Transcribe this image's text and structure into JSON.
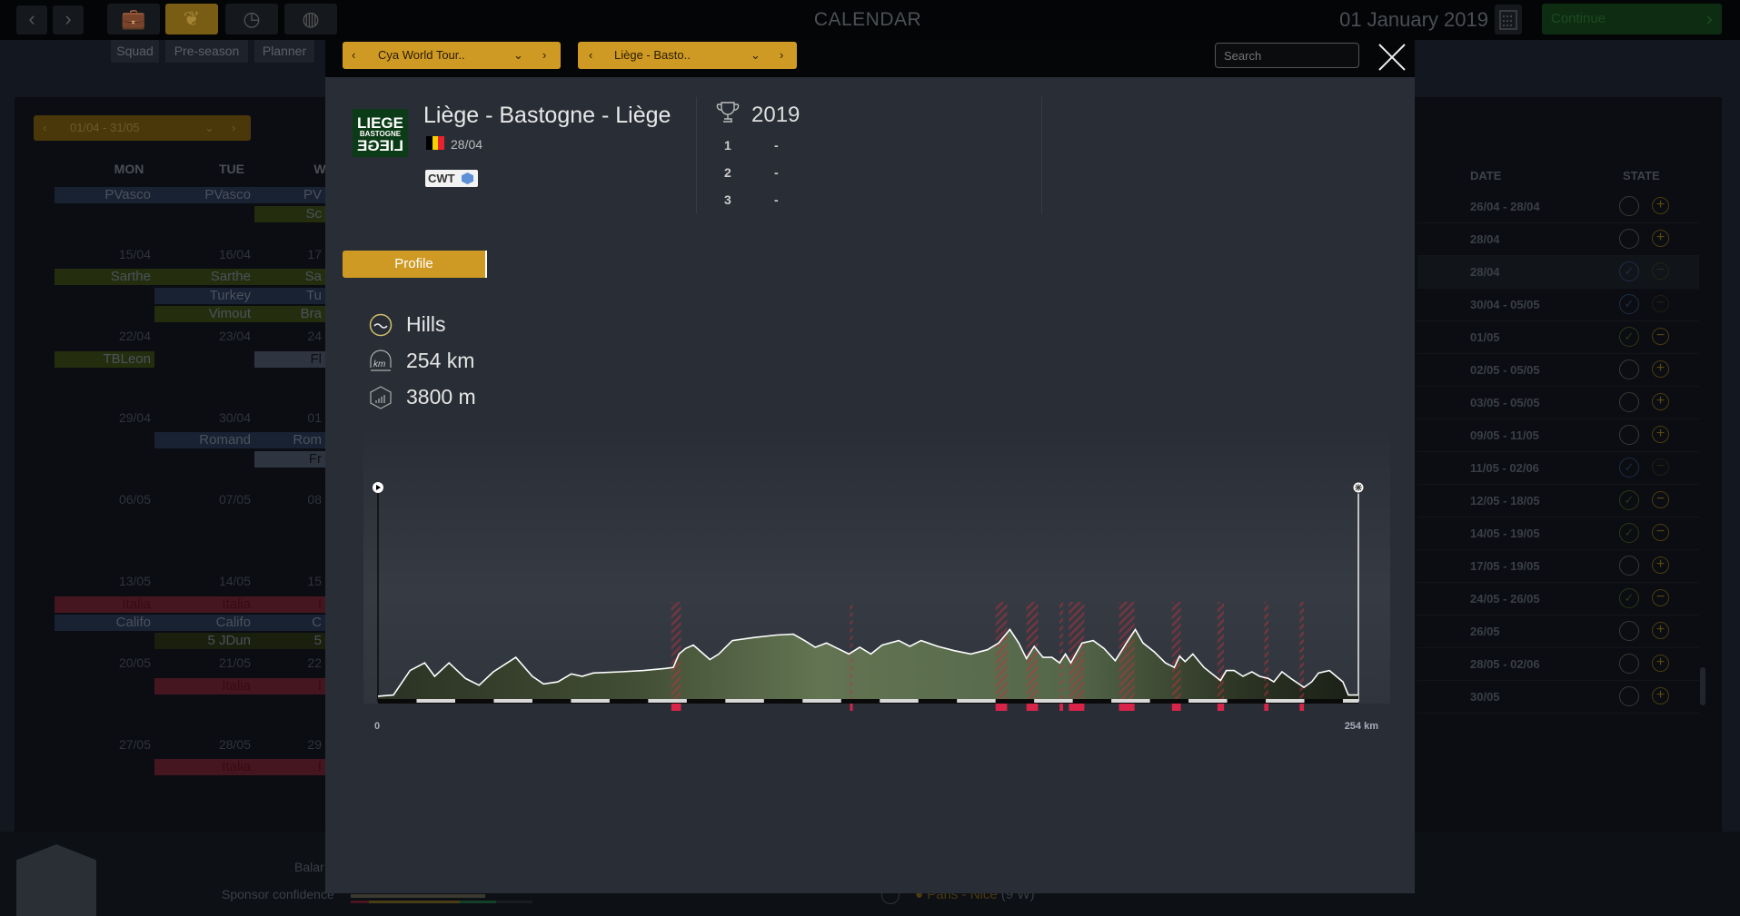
{
  "topbar": {
    "title": "CALENDAR",
    "date": "01 January 2019",
    "continue_label": "Continue",
    "tools": [
      {
        "icon": "briefcase-icon"
      },
      {
        "icon": "team-icon",
        "active": true
      },
      {
        "icon": "stopwatch-icon"
      },
      {
        "icon": "globe-icon"
      }
    ],
    "subtabs": [
      "Squad",
      "Pre-season",
      "Planner"
    ]
  },
  "calendar": {
    "range": "01/04 - 31/05",
    "days": [
      "MON",
      "TUE",
      "W"
    ],
    "dates": [
      [
        "15/04",
        "16/04",
        "17"
      ],
      [
        "22/04",
        "23/04",
        "24"
      ],
      [
        "29/04",
        "30/04",
        "01"
      ],
      [
        "06/05",
        "07/05",
        "08"
      ],
      [
        "13/05",
        "14/05",
        "15"
      ],
      [
        "20/05",
        "21/05",
        "22"
      ],
      [
        "27/05",
        "28/05",
        "29"
      ]
    ],
    "events": [
      {
        "text": [
          "PVasco",
          "PVasco",
          "PV"
        ],
        "color": "blue",
        "cols": [
          0,
          1,
          2
        ],
        "row": 0
      },
      {
        "text": [
          "",
          "",
          "Sc"
        ],
        "color": "olive",
        "cols": [
          2
        ],
        "row": 1
      },
      {
        "text": [
          "Sarthe",
          "Sarthe",
          "Sa"
        ],
        "color": "olive",
        "cols": [
          0,
          1,
          2
        ],
        "row": 2
      },
      {
        "text": [
          "",
          "Turkey",
          "Tu"
        ],
        "color": "blue",
        "cols": [
          1,
          2
        ],
        "row": 3
      },
      {
        "text": [
          "",
          "Vimout",
          "Bra"
        ],
        "color": "olive",
        "cols": [
          1,
          2
        ],
        "row": 4
      },
      {
        "text": [
          "TBLeon",
          "",
          ""
        ],
        "color": "olive",
        "cols": [
          0
        ],
        "row": 5
      },
      {
        "text": [
          "",
          "",
          "Fl"
        ],
        "color": "gray",
        "cols": [
          2
        ],
        "row": 5
      },
      {
        "text": [
          "",
          "Romand",
          "Rom"
        ],
        "color": "blue",
        "cols": [
          1,
          2
        ],
        "row": 6
      },
      {
        "text": [
          "",
          "",
          "Fr"
        ],
        "color": "gray",
        "cols": [
          2
        ],
        "row": 7
      },
      {
        "text": [
          "Italia",
          "Italia",
          "I"
        ],
        "color": "red",
        "cols": [
          0,
          1,
          2
        ],
        "row": 8
      },
      {
        "text": [
          "Califo",
          "Califo",
          "C"
        ],
        "color": "blue",
        "cols": [
          0,
          1,
          2
        ],
        "row": 9
      },
      {
        "text": [
          "",
          "5 JDun",
          "5"
        ],
        "color": "dark",
        "cols": [
          1,
          2
        ],
        "row": 10
      },
      {
        "text": [
          "",
          "Italia",
          "I"
        ],
        "color": "red",
        "cols": [
          1,
          2
        ],
        "row": 11
      },
      {
        "text": [
          "",
          "Italia",
          "I"
        ],
        "color": "red",
        "cols": [
          1,
          2
        ],
        "row": 12
      }
    ]
  },
  "race_table": {
    "headers": {
      "date": "DATE",
      "state": "STATE"
    },
    "rows": [
      {
        "date": "26/04 - 28/04",
        "state": "empty",
        "action": "+"
      },
      {
        "date": "28/04",
        "state": "empty",
        "action": "+"
      },
      {
        "date": "28/04",
        "state": "check-blue",
        "action": "−",
        "selected": true
      },
      {
        "date": "30/04 - 05/05",
        "state": "check-blue",
        "action": "−"
      },
      {
        "date": "01/05",
        "state": "check-green",
        "action": "−"
      },
      {
        "date": "02/05 - 05/05",
        "state": "empty",
        "action": "+"
      },
      {
        "date": "03/05 - 05/05",
        "state": "empty",
        "action": "+"
      },
      {
        "date": "09/05 - 11/05",
        "state": "empty",
        "action": "+"
      },
      {
        "date": "11/05 - 02/06",
        "state": "check-blue",
        "action": "−"
      },
      {
        "date": "12/05 - 18/05",
        "state": "check-green",
        "action": "−"
      },
      {
        "date": "14/05 - 19/05",
        "state": "check-green",
        "action": "−"
      },
      {
        "date": "17/05 - 19/05",
        "state": "empty",
        "action": "+"
      },
      {
        "date": "24/05 - 26/05",
        "state": "check-green",
        "action": "−"
      },
      {
        "date": "26/05",
        "state": "empty",
        "action": "+"
      },
      {
        "date": "28/05 - 02/06",
        "state": "empty",
        "action": "+"
      },
      {
        "date": "30/05",
        "state": "empty",
        "action": "+"
      }
    ]
  },
  "footer": {
    "balance_label": "Balar",
    "sponsor_label": "Sponsor confidence",
    "next_race": "Paris - Nice",
    "next_race_suffix": "(9 W)"
  },
  "modal": {
    "circuit_dropdown": "Cya World Tour..",
    "race_dropdown": "Liège - Basto..",
    "search_placeholder": "Search",
    "race": {
      "name": "Liège - Bastogne - Liège",
      "logo_text": "LIEGE BASTOGNE LIEGE",
      "country_flag": [
        "#000000",
        "#f5d000",
        "#e8232f"
      ],
      "date": "28/04",
      "category": "CWT",
      "category_color": "#5b8fd6"
    },
    "results": {
      "year": "2019",
      "podium": [
        {
          "pos": "1",
          "name": "-"
        },
        {
          "pos": "2",
          "name": "-"
        },
        {
          "pos": "3",
          "name": "-"
        }
      ]
    },
    "tab_profile": "Profile",
    "stats": {
      "terrain": "Hills",
      "distance": "254 km",
      "elevation": "3800 m"
    },
    "colors": {
      "accent": "#cf9a24",
      "climb": "#d9244a"
    }
  },
  "chart_data": {
    "type": "area",
    "x_unit": "km",
    "xlim": [
      0,
      254
    ],
    "ylim": [
      0,
      700
    ],
    "tick_labels": {
      "start": "0",
      "end": "254 km"
    },
    "profile": [
      [
        0,
        18
      ],
      [
        4,
        22
      ],
      [
        8.3,
        102
      ],
      [
        12.1,
        127
      ],
      [
        14.7,
        83
      ],
      [
        18.4,
        127
      ],
      [
        22.7,
        76
      ],
      [
        26.2,
        54
      ],
      [
        29.9,
        98
      ],
      [
        35.7,
        145
      ],
      [
        40,
        83
      ],
      [
        42.9,
        58
      ],
      [
        46.6,
        65
      ],
      [
        50.1,
        91
      ],
      [
        52.9,
        83
      ],
      [
        55.8,
        94
      ],
      [
        63,
        98
      ],
      [
        68.8,
        102
      ],
      [
        74.5,
        109
      ],
      [
        76.5,
        112
      ],
      [
        78,
        156
      ],
      [
        79.7,
        174
      ],
      [
        81.7,
        185
      ],
      [
        83.7,
        163
      ],
      [
        86,
        138
      ],
      [
        88.3,
        156
      ],
      [
        91.8,
        200
      ],
      [
        97.5,
        210
      ],
      [
        103.3,
        218
      ],
      [
        107.6,
        221
      ],
      [
        110.5,
        200
      ],
      [
        113.3,
        178
      ],
      [
        116.2,
        192
      ],
      [
        119.1,
        174
      ],
      [
        122,
        156
      ],
      [
        124.8,
        178
      ],
      [
        127.7,
        156
      ],
      [
        130.6,
        185
      ],
      [
        134.9,
        200
      ],
      [
        137.8,
        181
      ],
      [
        140.7,
        200
      ],
      [
        145,
        181
      ],
      [
        149.3,
        167
      ],
      [
        153.6,
        156
      ],
      [
        157.9,
        170
      ],
      [
        160.8,
        192
      ],
      [
        163.7,
        236
      ],
      [
        166,
        192
      ],
      [
        168,
        141
      ],
      [
        170,
        181
      ],
      [
        172.3,
        145
      ],
      [
        174.6,
        145
      ],
      [
        176.6,
        127
      ],
      [
        178.1,
        156
      ],
      [
        179.5,
        127
      ],
      [
        182.4,
        192
      ],
      [
        185.3,
        200
      ],
      [
        188.1,
        174
      ],
      [
        191,
        134
      ],
      [
        193.9,
        192
      ],
      [
        196.2,
        236
      ],
      [
        198.2,
        192
      ],
      [
        201.1,
        163
      ],
      [
        204,
        127
      ],
      [
        206.3,
        112
      ],
      [
        207.7,
        149
      ],
      [
        209.1,
        131
      ],
      [
        211.1,
        156
      ],
      [
        214,
        112
      ],
      [
        216.9,
        83
      ],
      [
        218.3,
        69
      ],
      [
        219.8,
        102
      ],
      [
        221.8,
        102
      ],
      [
        224.1,
        83
      ],
      [
        226.4,
        98
      ],
      [
        228.4,
        83
      ],
      [
        230.7,
        76
      ],
      [
        232.1,
        65
      ],
      [
        234.2,
        98
      ],
      [
        236.5,
        76
      ],
      [
        239.9,
        47
      ],
      [
        241.9,
        65
      ],
      [
        243.7,
        94
      ],
      [
        246.5,
        102
      ],
      [
        250,
        65
      ],
      [
        251.4,
        22
      ],
      [
        254,
        22
      ]
    ],
    "climbs": [
      [
        76,
        78.5
      ],
      [
        122.3,
        123
      ],
      [
        160,
        163
      ],
      [
        168,
        171
      ],
      [
        176.6,
        177.5
      ],
      [
        179,
        183
      ],
      [
        192,
        196
      ],
      [
        205.7,
        208
      ],
      [
        217.5,
        219.2
      ],
      [
        229.6,
        230.7
      ],
      [
        238.8,
        239.9
      ]
    ],
    "grid": false
  }
}
